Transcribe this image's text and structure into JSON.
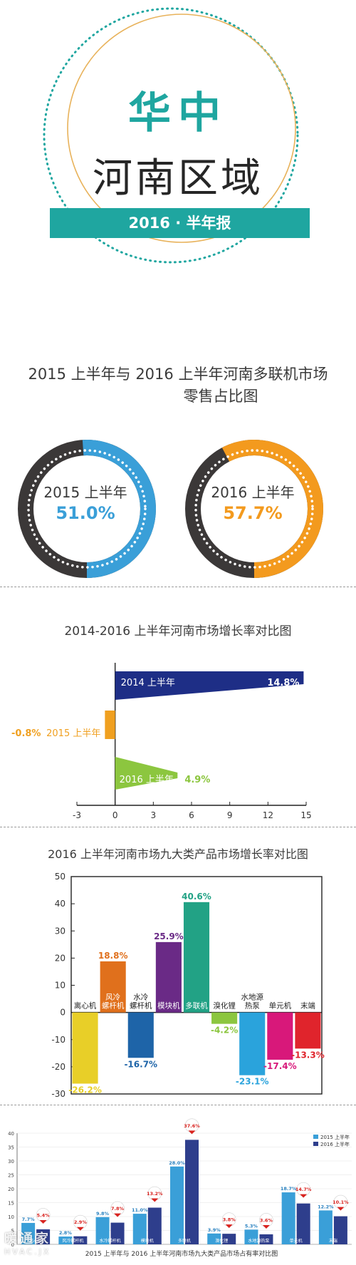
{
  "cover": {
    "title_cn_top": "华中",
    "title_cn_main": "河南区域",
    "badge": "2016 · 半年报",
    "colors": {
      "teal": "#1fa6a0",
      "gold": "#e8b25a"
    }
  },
  "donut_section": {
    "title_line1": "2015 上半年与 2016 上半年河南多联机市场",
    "title_line2": "零售占比图"
  },
  "growth_section": {
    "title": "2014-2016 上半年河南市场增长率对比图"
  },
  "category_section": {
    "title": "2016 上半年河南市场九大类产品市场增长率对比图"
  },
  "share_section": {
    "title": "2015 上半年与 2016 上半年河南市场九大类产品市场占有率对比图"
  },
  "watermark": {
    "line1": "暖通家",
    "line2": "HVAC.JX"
  },
  "chart_data": [
    {
      "type": "pie",
      "title": "2015 上半年",
      "values": [
        51.0
      ],
      "value_label": "51.0%",
      "colors": {
        "highlight": "#3a9fd8",
        "rest": "#3b3838"
      }
    },
    {
      "type": "pie",
      "title": "2016 上半年",
      "values": [
        57.7
      ],
      "value_label": "57.7%",
      "colors": {
        "highlight": "#f39a1e",
        "rest": "#3b3838"
      }
    },
    {
      "type": "bar",
      "orientation": "horizontal",
      "categories": [
        "2014 上半年",
        "2015 上半年",
        "2016 上半年"
      ],
      "values": [
        14.8,
        -0.8,
        4.9
      ],
      "value_labels": [
        "14.8%",
        "-0.8%",
        "4.9%"
      ],
      "colors": [
        "#1e2e86",
        "#f0a020",
        "#8cc63f"
      ],
      "xlim": [
        -3,
        15
      ],
      "xticks": [
        -3,
        0,
        3,
        6,
        9,
        12,
        15
      ]
    },
    {
      "type": "bar",
      "categories": [
        "离心机",
        "风冷螺杆机",
        "水冷螺杆机",
        "模块机",
        "多联机",
        "溴化锂",
        "水地源热泵",
        "单元机",
        "末端"
      ],
      "category_labels": [
        [
          "离心机"
        ],
        [
          "风冷",
          "螺杆机"
        ],
        [
          "水冷",
          "螺杆机"
        ],
        [
          "模块机"
        ],
        [
          "多联机"
        ],
        [
          "溴化锂"
        ],
        [
          "水地源",
          "热泵"
        ],
        [
          "单元机"
        ],
        [
          "末端"
        ]
      ],
      "values": [
        -26.2,
        18.8,
        -16.7,
        25.9,
        40.6,
        -4.2,
        -23.1,
        -17.4,
        -13.3
      ],
      "value_labels": [
        "-26.2%",
        "18.8%",
        "-16.7%",
        "25.9%",
        "40.6%",
        "-4.2%",
        "-23.1%",
        "-17.4%",
        "-13.3%"
      ],
      "colors": [
        "#e8cf28",
        "#e0701c",
        "#1e64a8",
        "#6a2a86",
        "#22a285",
        "#8cc63f",
        "#2aa3dc",
        "#d8187a",
        "#e0242c"
      ],
      "label_colors": [
        "#e8cf28",
        "#e0701c",
        "#1e64a8",
        "#6a2a86",
        "#22a285",
        "#8cc63f",
        "#2aa3dc",
        "#d8187a",
        "#e0242c"
      ],
      "ylim": [
        -30,
        50
      ],
      "yticks": [
        -30,
        -20,
        -10,
        0,
        10,
        20,
        30,
        40,
        50
      ]
    },
    {
      "type": "bar",
      "categories": [
        "离心机",
        "风冷螺杆机",
        "水冷螺杆机",
        "模块机",
        "多联机",
        "溴化锂",
        "水地源热泵",
        "单元机",
        "末端"
      ],
      "series": [
        {
          "name": "2015 上半年",
          "values": [
            7.7,
            2.8,
            9.8,
            11.0,
            28.0,
            3.9,
            5.3,
            18.7,
            12.2
          ],
          "labels": [
            "7.7%",
            "2.8%",
            "9.8%",
            "11.0%",
            "28.0%",
            "3.9%",
            "5.3%",
            "18.7%",
            "12.2%"
          ],
          "color": "#3a9fd8"
        },
        {
          "name": "2016 上半年",
          "values": [
            5.4,
            2.9,
            7.8,
            13.2,
            37.6,
            3.8,
            3.6,
            14.7,
            10.1
          ],
          "labels": [
            "5.4%",
            "2.9%",
            "7.8%",
            "13.2%",
            "37.6%",
            "3.8%",
            "3.6%",
            "14.7%",
            "10.1%"
          ],
          "color": "#2e3e8c"
        }
      ],
      "ylim": [
        0,
        40
      ],
      "yticks": [
        0,
        5,
        10,
        15,
        20,
        25,
        30,
        35,
        40
      ]
    }
  ]
}
